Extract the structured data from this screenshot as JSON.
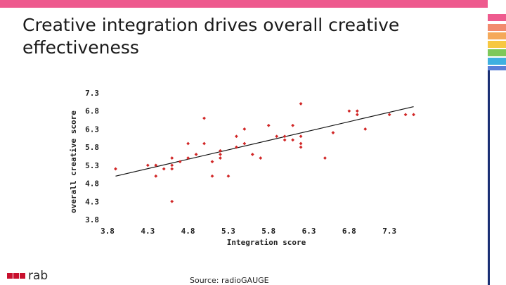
{
  "header": {
    "title_line1": "Creative integration drives overall creative",
    "title_line2": "effectiveness"
  },
  "footer": {
    "source": "Source: radioGAUGE",
    "logo_text": "rab"
  },
  "colors": {
    "top_bar": "#ee5a8e",
    "marker": "#d12727",
    "trendline": "#111111",
    "logo_red": "#c8102e",
    "navy": "#1a2f74",
    "strip": [
      "#ee5a8e",
      "#f28b6e",
      "#f5a95a",
      "#f7c842",
      "#7ec85a",
      "#3fb0e0",
      "#5a7fd8"
    ]
  },
  "chart_data": {
    "type": "scatter",
    "xlabel": "Integration score",
    "ylabel": "overall creative score",
    "xlim": [
      3.8,
      7.7
    ],
    "ylim": [
      3.8,
      7.3
    ],
    "xticks": [
      "3.8",
      "4.3",
      "4.8",
      "5.3",
      "5.8",
      "6.3",
      "6.8",
      "7.3"
    ],
    "yticks": [
      "7.3",
      "6.8",
      "6.3",
      "5.8",
      "5.3",
      "4.8",
      "4.3",
      "3.8"
    ],
    "grid": false,
    "trendline": {
      "x": [
        3.9,
        7.6
      ],
      "y": [
        5.0,
        6.92
      ]
    },
    "points": [
      {
        "x": 3.9,
        "y": 5.2
      },
      {
        "x": 4.3,
        "y": 5.3
      },
      {
        "x": 4.4,
        "y": 5.3
      },
      {
        "x": 4.4,
        "y": 5.0
      },
      {
        "x": 4.5,
        "y": 5.2
      },
      {
        "x": 4.6,
        "y": 5.2
      },
      {
        "x": 4.6,
        "y": 5.3
      },
      {
        "x": 4.6,
        "y": 5.5
      },
      {
        "x": 4.6,
        "y": 4.3
      },
      {
        "x": 4.7,
        "y": 5.4
      },
      {
        "x": 4.8,
        "y": 5.5
      },
      {
        "x": 4.8,
        "y": 5.9
      },
      {
        "x": 4.9,
        "y": 5.6
      },
      {
        "x": 5.0,
        "y": 5.9
      },
      {
        "x": 5.0,
        "y": 6.6
      },
      {
        "x": 5.1,
        "y": 5.4
      },
      {
        "x": 5.1,
        "y": 5.0
      },
      {
        "x": 5.2,
        "y": 5.7
      },
      {
        "x": 5.2,
        "y": 5.6
      },
      {
        "x": 5.2,
        "y": 5.5
      },
      {
        "x": 5.3,
        "y": 5.0
      },
      {
        "x": 5.4,
        "y": 5.8
      },
      {
        "x": 5.4,
        "y": 6.1
      },
      {
        "x": 5.5,
        "y": 6.3
      },
      {
        "x": 5.5,
        "y": 5.9
      },
      {
        "x": 5.6,
        "y": 5.6
      },
      {
        "x": 5.7,
        "y": 5.5
      },
      {
        "x": 5.8,
        "y": 6.4
      },
      {
        "x": 5.9,
        "y": 6.1
      },
      {
        "x": 6.0,
        "y": 6.1
      },
      {
        "x": 6.0,
        "y": 6.0
      },
      {
        "x": 6.1,
        "y": 6.4
      },
      {
        "x": 6.1,
        "y": 6.0
      },
      {
        "x": 6.2,
        "y": 5.9
      },
      {
        "x": 6.2,
        "y": 5.8
      },
      {
        "x": 6.2,
        "y": 6.1
      },
      {
        "x": 6.2,
        "y": 7.0
      },
      {
        "x": 6.5,
        "y": 5.5
      },
      {
        "x": 6.6,
        "y": 6.2
      },
      {
        "x": 6.8,
        "y": 6.8
      },
      {
        "x": 6.9,
        "y": 6.8
      },
      {
        "x": 6.9,
        "y": 6.7
      },
      {
        "x": 7.0,
        "y": 6.3
      },
      {
        "x": 7.3,
        "y": 6.7
      },
      {
        "x": 7.5,
        "y": 6.7
      },
      {
        "x": 7.6,
        "y": 6.7
      }
    ]
  }
}
